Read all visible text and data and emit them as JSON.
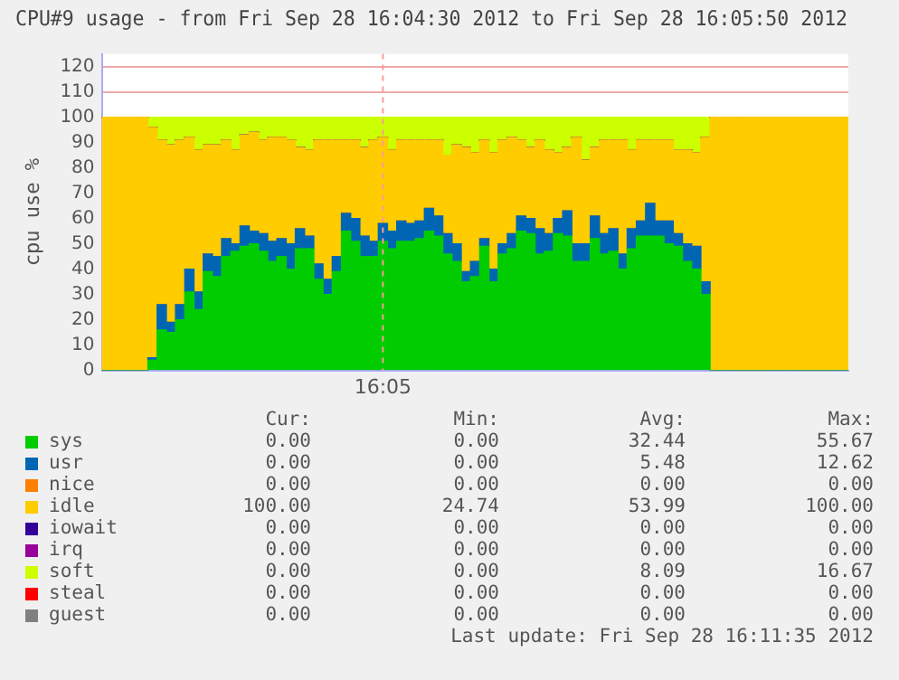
{
  "chart_data": {
    "type": "bar",
    "stacked": true,
    "title": "CPU#9 usage - from Fri Sep 28 16:04:30 2012 to Fri Sep 28 16:05:50 2012",
    "ylabel": "cpu use %",
    "categories": [
      null,
      null,
      null,
      null,
      null,
      null,
      null,
      null,
      null,
      null,
      null,
      null,
      null,
      null,
      null,
      null,
      null,
      null,
      null,
      null,
      null,
      null,
      null,
      null,
      null,
      null,
      null,
      null,
      null,
      null,
      "16:05",
      null,
      null,
      null,
      null,
      null,
      null,
      null,
      null,
      null,
      null,
      null,
      null,
      null,
      null,
      null,
      null,
      null,
      null,
      null,
      null,
      null,
      null,
      null,
      null,
      null,
      null,
      null,
      null,
      null,
      null,
      null,
      null,
      null,
      null,
      null,
      null,
      null,
      null,
      null,
      null,
      null,
      null,
      null,
      null,
      null,
      null,
      null,
      null,
      null,
      null
    ],
    "series": [
      {
        "name": "sys",
        "color": "#00cc00",
        "values": [
          0,
          0,
          0,
          0,
          0,
          4,
          16,
          15,
          20,
          31,
          24,
          39,
          37,
          45,
          47,
          49,
          50,
          47,
          43,
          45,
          40,
          48,
          48,
          36,
          30,
          39,
          55,
          51,
          45,
          45,
          51,
          48,
          51,
          51,
          52,
          55,
          53,
          46,
          43,
          35,
          37,
          49,
          35,
          46,
          48,
          55,
          54,
          46,
          47,
          54,
          53,
          43,
          43,
          52,
          46,
          47,
          40,
          48,
          53,
          53,
          53,
          50,
          49,
          43,
          40,
          30,
          0,
          0,
          0,
          0,
          0,
          0,
          0,
          0,
          0,
          0,
          0,
          0,
          0,
          0,
          0
        ]
      },
      {
        "name": "usr",
        "color": "#0066b3",
        "values": [
          0,
          0,
          0,
          0,
          0,
          1,
          10,
          4,
          6,
          9,
          7,
          7,
          8,
          7,
          3,
          8,
          5,
          7,
          8,
          7,
          10,
          8,
          5,
          6,
          6,
          6,
          7,
          9,
          8,
          6,
          7,
          7,
          8,
          7,
          7,
          9,
          8,
          8,
          7,
          4,
          6,
          3,
          5,
          4,
          6,
          6,
          6,
          10,
          7,
          6,
          10,
          7,
          7,
          9,
          8,
          9,
          6,
          8,
          6,
          13,
          6,
          9,
          5,
          7,
          9,
          5,
          0,
          0,
          0,
          0,
          0,
          0,
          0,
          0,
          0,
          0,
          0,
          0,
          0,
          0,
          0
        ]
      },
      {
        "name": "nice",
        "color": "#ff8000",
        "values": [
          0,
          0,
          0,
          0,
          0,
          0,
          0,
          0,
          0,
          0,
          0,
          0,
          0,
          0,
          0,
          0,
          0,
          0,
          0,
          0,
          0,
          0,
          0,
          0,
          0,
          0,
          0,
          0,
          0,
          0,
          0,
          0,
          0,
          0,
          0,
          0,
          0,
          0,
          0,
          0,
          0,
          0,
          0,
          0,
          0,
          0,
          0,
          0,
          0,
          0,
          0,
          0,
          0,
          0,
          0,
          0,
          0,
          0,
          0,
          0,
          0,
          0,
          0,
          0,
          0,
          0,
          0,
          0,
          0,
          0,
          0,
          0,
          0,
          0,
          0,
          0,
          0,
          0,
          0,
          0,
          0
        ]
      },
      {
        "name": "idle",
        "color": "#ffcc00",
        "values": [
          100,
          100,
          100,
          100,
          100,
          91,
          65,
          70,
          65,
          52,
          56,
          43,
          44,
          39,
          37,
          36,
          39,
          37,
          41,
          40,
          41,
          32,
          34,
          49,
          55,
          46,
          29,
          31,
          35,
          40,
          34,
          32,
          32,
          33,
          32,
          27,
          30,
          31,
          39,
          49,
          43,
          39,
          46,
          41,
          38,
          30,
          28,
          35,
          33,
          26,
          25,
          42,
          33,
          27,
          37,
          35,
          45,
          31,
          32,
          25,
          32,
          32,
          33,
          37,
          37,
          57,
          100,
          100,
          100,
          100,
          100,
          100,
          100,
          100,
          100,
          100,
          100,
          100,
          100,
          100,
          100
        ]
      },
      {
        "name": "iowait",
        "color": "#330099",
        "values": [
          0,
          0,
          0,
          0,
          0,
          0,
          0,
          0,
          0,
          0,
          0,
          0,
          0,
          0,
          0,
          0,
          0,
          0,
          0,
          0,
          0,
          0,
          0,
          0,
          0,
          0,
          0,
          0,
          0,
          0,
          0,
          0,
          0,
          0,
          0,
          0,
          0,
          0,
          0,
          0,
          0,
          0,
          0,
          0,
          0,
          0,
          0,
          0,
          0,
          0,
          0,
          0,
          0,
          0,
          0,
          0,
          0,
          0,
          0,
          0,
          0,
          0,
          0,
          0,
          0,
          0,
          0,
          0,
          0,
          0,
          0,
          0,
          0,
          0,
          0,
          0,
          0,
          0,
          0,
          0,
          0
        ]
      },
      {
        "name": "irq",
        "color": "#990099",
        "values": [
          0,
          0,
          0,
          0,
          0,
          0,
          0,
          0,
          0,
          0,
          0,
          0,
          0,
          0,
          0,
          0,
          0,
          0,
          0,
          0,
          0,
          0,
          0,
          0,
          0,
          0,
          0,
          0,
          0,
          0,
          0,
          0,
          0,
          0,
          0,
          0,
          0,
          0,
          0,
          0,
          0,
          0,
          0,
          0,
          0,
          0,
          0,
          0,
          0,
          0,
          0,
          0,
          0,
          0,
          0,
          0,
          0,
          0,
          0,
          0,
          0,
          0,
          0,
          0,
          0,
          0,
          0,
          0,
          0,
          0,
          0,
          0,
          0,
          0,
          0,
          0,
          0,
          0,
          0,
          0,
          0
        ]
      },
      {
        "name": "soft",
        "color": "#ccff00",
        "values": [
          0,
          0,
          0,
          0,
          0,
          4,
          9,
          11,
          9,
          8,
          13,
          11,
          11,
          9,
          13,
          7,
          6,
          9,
          8,
          8,
          9,
          12,
          13,
          9,
          9,
          9,
          9,
          9,
          12,
          9,
          8,
          13,
          9,
          9,
          9,
          9,
          9,
          15,
          11,
          12,
          14,
          9,
          14,
          9,
          8,
          9,
          12,
          9,
          13,
          14,
          12,
          8,
          17,
          12,
          9,
          9,
          9,
          13,
          9,
          9,
          9,
          9,
          13,
          13,
          14,
          8,
          0,
          0,
          0,
          0,
          0,
          0,
          0,
          0,
          0,
          0,
          0,
          0,
          0,
          0,
          0
        ]
      },
      {
        "name": "steal",
        "color": "#ff0000",
        "values": [
          0,
          0,
          0,
          0,
          0,
          0,
          0,
          0,
          0,
          0,
          0,
          0,
          0,
          0,
          0,
          0,
          0,
          0,
          0,
          0,
          0,
          0,
          0,
          0,
          0,
          0,
          0,
          0,
          0,
          0,
          0,
          0,
          0,
          0,
          0,
          0,
          0,
          0,
          0,
          0,
          0,
          0,
          0,
          0,
          0,
          0,
          0,
          0,
          0,
          0,
          0,
          0,
          0,
          0,
          0,
          0,
          0,
          0,
          0,
          0,
          0,
          0,
          0,
          0,
          0,
          0,
          0,
          0,
          0,
          0,
          0,
          0,
          0,
          0,
          0,
          0,
          0,
          0,
          0,
          0,
          0
        ]
      },
      {
        "name": "guest",
        "color": "#808080",
        "values": [
          0,
          0,
          0,
          0,
          0,
          0,
          0,
          0,
          0,
          0,
          0,
          0,
          0,
          0,
          0,
          0,
          0,
          0,
          0,
          0,
          0,
          0,
          0,
          0,
          0,
          0,
          0,
          0,
          0,
          0,
          0,
          0,
          0,
          0,
          0,
          0,
          0,
          0,
          0,
          0,
          0,
          0,
          0,
          0,
          0,
          0,
          0,
          0,
          0,
          0,
          0,
          0,
          0,
          0,
          0,
          0,
          0,
          0,
          0,
          0,
          0,
          0,
          0,
          0,
          0,
          0,
          0,
          0,
          0,
          0,
          0,
          0,
          0,
          0,
          0,
          0,
          0,
          0,
          0,
          0,
          0
        ]
      }
    ],
    "ref_lines": [
      {
        "axis": "x",
        "value": "16:05",
        "color": "#ff9999",
        "line_style": "dashed"
      }
    ],
    "ylim": [
      0,
      125
    ],
    "yticks": [
      0,
      10,
      20,
      30,
      40,
      50,
      60,
      70,
      80,
      90,
      100,
      110,
      120
    ],
    "grid": "y",
    "legend": "bottom",
    "annotations": [
      "Cur:",
      "Min:",
      "Avg:",
      "Max:",
      "0.00",
      "0.00",
      "32.44",
      "55.67",
      "0.00",
      "0.00",
      "5.48",
      "12.62",
      "0.00",
      "0.00",
      "0.00",
      "0.00",
      "100.00",
      "24.74",
      "53.99",
      "100.00",
      "0.00",
      "0.00",
      "0.00",
      "0.00",
      "0.00",
      "0.00",
      "0.00",
      "0.00",
      "0.00",
      "0.00",
      "8.09",
      "16.67",
      "0.00",
      "0.00",
      "0.00",
      "0.00",
      "0.00",
      "0.00",
      "0.00",
      "0.00",
      "Last update: Fri Sep 28 16:11:35 2012"
    ]
  }
}
